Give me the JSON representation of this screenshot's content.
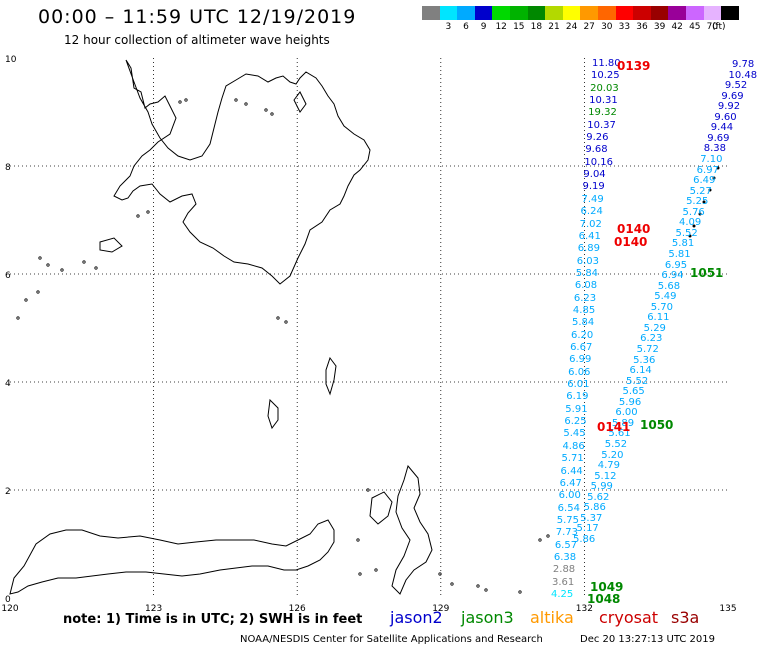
{
  "header": {
    "title": "00:00 – 11:59 UTC 12/19/2019",
    "subtitle": "12 hour collection of altimeter wave heights"
  },
  "legend": {
    "unit": "(ft)",
    "items": [
      {
        "label": "",
        "color": "#808080"
      },
      {
        "label": "3",
        "color": "#00e5ff"
      },
      {
        "label": "6",
        "color": "#00aaff"
      },
      {
        "label": "9",
        "color": "#0000cc"
      },
      {
        "label": "12",
        "color": "#00d900"
      },
      {
        "label": "15",
        "color": "#00b300"
      },
      {
        "label": "18",
        "color": "#008800"
      },
      {
        "label": "21",
        "color": "#b3d900"
      },
      {
        "label": "24",
        "color": "#ffff00"
      },
      {
        "label": "27",
        "color": "#ff9900"
      },
      {
        "label": "30",
        "color": "#ff6600"
      },
      {
        "label": "33",
        "color": "#ff0000"
      },
      {
        "label": "36",
        "color": "#cc0000"
      },
      {
        "label": "39",
        "color": "#990000"
      },
      {
        "label": "42",
        "color": "#990099"
      },
      {
        "label": "45",
        "color": "#cc66ff"
      },
      {
        "label": "70",
        "color": "#e6b3ff"
      },
      {
        "label": "",
        "color": "#000000"
      }
    ]
  },
  "axes": {
    "x_ticks": [
      "120",
      "123",
      "126",
      "129",
      "132",
      "135"
    ],
    "y_ticks": [
      "10",
      "8",
      "6",
      "4",
      "2",
      "0"
    ],
    "xlim": [
      120,
      135
    ],
    "ylim": [
      0,
      10
    ]
  },
  "observations": {
    "left_track": [
      {
        "text": "11.80",
        "color": "#0000cc"
      },
      {
        "text": "10.25",
        "color": "#0000cc"
      },
      {
        "text": "20.03",
        "color": "#008800"
      },
      {
        "text": "10.31",
        "color": "#0000cc"
      },
      {
        "text": "19.32",
        "color": "#008800"
      },
      {
        "text": "10.37",
        "color": "#0000cc"
      },
      {
        "text": "9.26",
        "color": "#0000cc"
      },
      {
        "text": "9.68",
        "color": "#0000cc"
      },
      {
        "text": "10.16",
        "color": "#0000cc"
      },
      {
        "text": "9.04",
        "color": "#0000cc"
      },
      {
        "text": "9.19",
        "color": "#0000cc"
      },
      {
        "text": "7.49",
        "color": "#00aaff"
      },
      {
        "text": "6.24",
        "color": "#00aaff"
      },
      {
        "text": "7.02",
        "color": "#00aaff"
      },
      {
        "text": "6.41",
        "color": "#00aaff"
      },
      {
        "text": "6.89",
        "color": "#00aaff"
      },
      {
        "text": "6.03",
        "color": "#00aaff"
      },
      {
        "text": "5.84",
        "color": "#00aaff"
      },
      {
        "text": "6.08",
        "color": "#00aaff"
      },
      {
        "text": "6.23",
        "color": "#00aaff"
      },
      {
        "text": "4.85",
        "color": "#00aaff"
      },
      {
        "text": "5.84",
        "color": "#00aaff"
      },
      {
        "text": "6.20",
        "color": "#00aaff"
      },
      {
        "text": "6.67",
        "color": "#00aaff"
      },
      {
        "text": "6.99",
        "color": "#00aaff"
      },
      {
        "text": "6.06",
        "color": "#00aaff"
      },
      {
        "text": "6.01",
        "color": "#00aaff"
      },
      {
        "text": "6.19",
        "color": "#00aaff"
      },
      {
        "text": "5.91",
        "color": "#00aaff"
      },
      {
        "text": "6.25",
        "color": "#00aaff"
      },
      {
        "text": "5.45",
        "color": "#00aaff"
      },
      {
        "text": "4.86",
        "color": "#00aaff"
      },
      {
        "text": "5.71",
        "color": "#00aaff"
      },
      {
        "text": "6.44",
        "color": "#00aaff"
      },
      {
        "text": "6.47",
        "color": "#00aaff"
      },
      {
        "text": "6.00",
        "color": "#00aaff"
      },
      {
        "text": "6.54",
        "color": "#00aaff"
      },
      {
        "text": "5.75",
        "color": "#00aaff"
      },
      {
        "text": "7.73",
        "color": "#00aaff"
      },
      {
        "text": "6.57",
        "color": "#00aaff"
      },
      {
        "text": "6.38",
        "color": "#00aaff"
      },
      {
        "text": "2.88",
        "color": "#808080"
      },
      {
        "text": "3.61",
        "color": "#808080"
      },
      {
        "text": "4.25",
        "color": "#00e5ff"
      }
    ],
    "right_track": [
      {
        "text": "9.78",
        "color": "#0000cc"
      },
      {
        "text": "10.48",
        "color": "#0000cc"
      },
      {
        "text": "9.52",
        "color": "#0000cc"
      },
      {
        "text": "9.69",
        "color": "#0000cc"
      },
      {
        "text": "9.92",
        "color": "#0000cc"
      },
      {
        "text": "9.60",
        "color": "#0000cc"
      },
      {
        "text": "9.44",
        "color": "#0000cc"
      },
      {
        "text": "9.69",
        "color": "#0000cc"
      },
      {
        "text": "8.38",
        "color": "#0000cc"
      },
      {
        "text": "7.10",
        "color": "#00aaff"
      },
      {
        "text": "6.97",
        "color": "#00aaff"
      },
      {
        "text": "6.49",
        "color": "#00aaff"
      },
      {
        "text": "5.27",
        "color": "#00aaff"
      },
      {
        "text": "5.25",
        "color": "#00aaff"
      },
      {
        "text": "5.76",
        "color": "#00aaff"
      },
      {
        "text": "4.09",
        "color": "#00aaff"
      },
      {
        "text": "5.52",
        "color": "#00aaff"
      },
      {
        "text": "5.81",
        "color": "#00aaff"
      },
      {
        "text": "5.81",
        "color": "#00aaff"
      },
      {
        "text": "6.95",
        "color": "#00aaff"
      },
      {
        "text": "6.94",
        "color": "#00aaff"
      },
      {
        "text": "5.68",
        "color": "#00aaff"
      },
      {
        "text": "5.49",
        "color": "#00aaff"
      },
      {
        "text": "5.70",
        "color": "#00aaff"
      },
      {
        "text": "6.11",
        "color": "#00aaff"
      },
      {
        "text": "5.29",
        "color": "#00aaff"
      },
      {
        "text": "6.23",
        "color": "#00aaff"
      },
      {
        "text": "5.72",
        "color": "#00aaff"
      },
      {
        "text": "5.36",
        "color": "#00aaff"
      },
      {
        "text": "6.14",
        "color": "#00aaff"
      },
      {
        "text": "5.52",
        "color": "#00aaff"
      },
      {
        "text": "5.65",
        "color": "#00aaff"
      },
      {
        "text": "5.96",
        "color": "#00aaff"
      },
      {
        "text": "6.00",
        "color": "#00aaff"
      },
      {
        "text": "5.89",
        "color": "#00aaff"
      },
      {
        "text": "5.61",
        "color": "#00aaff"
      },
      {
        "text": "5.52",
        "color": "#00aaff"
      },
      {
        "text": "5.20",
        "color": "#00aaff"
      },
      {
        "text": "4.79",
        "color": "#00aaff"
      },
      {
        "text": "5.12",
        "color": "#00aaff"
      },
      {
        "text": "5.99",
        "color": "#00aaff"
      },
      {
        "text": "5.62",
        "color": "#00aaff"
      },
      {
        "text": "5.86",
        "color": "#00aaff"
      },
      {
        "text": "5.37",
        "color": "#00aaff"
      },
      {
        "text": "5.17",
        "color": "#00aaff"
      },
      {
        "text": "5.86",
        "color": "#00aaff"
      }
    ],
    "pass_labels": [
      {
        "text": "0139",
        "color": "#ee0000"
      },
      {
        "text": "0140",
        "color": "#ee0000"
      },
      {
        "text": "0140",
        "color": "#ee0000"
      },
      {
        "text": "0141",
        "color": "#ee0000"
      },
      {
        "text": "1051",
        "color": "#008800"
      },
      {
        "text": "1050",
        "color": "#008800"
      },
      {
        "text": "1049",
        "color": "#008800"
      },
      {
        "text": "1048",
        "color": "#008800"
      }
    ]
  },
  "footer": {
    "note": "note: 1) Time is in UTC; 2) SWH is in feet",
    "satellites": [
      {
        "name": "jason2",
        "color": "#0000cc"
      },
      {
        "name": "jason3",
        "color": "#008800"
      },
      {
        "name": "altika",
        "color": "#ff9900"
      },
      {
        "name": "cryosat",
        "color": "#cc0000"
      },
      {
        "name": "s3a",
        "color": "#990000"
      }
    ],
    "credit": "NOAA/NESDIS Center for Satellite Applications and Research",
    "timestamp": "Dec 20 13:27:13 UTC 2019"
  }
}
